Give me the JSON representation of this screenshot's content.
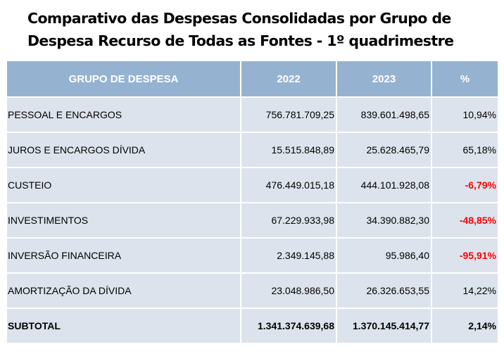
{
  "title": {
    "line1": "Comparativo das Despesas  Consolidadas por Grupo de",
    "line2": "Despesa Recurso de Todas as Fontes - 1º quadrimestre"
  },
  "table": {
    "headers": [
      "GRUPO DE DESPESA",
      "2022",
      "2023",
      "%"
    ],
    "rows": [
      {
        "group": "PESSOAL E ENCARGOS",
        "y2022": "756.781.709,25",
        "y2023": "839.601.498,65",
        "pct": "10,94%"
      },
      {
        "group": "JUROS E ENCARGOS DÍVIDA",
        "y2022": "15.515.848,89",
        "y2023": "25.628.465,79",
        "pct": "65,18%"
      },
      {
        "group": "CUSTEIO",
        "y2022": "476.449.015,18",
        "y2023": "444.101.928,08",
        "pct": "-6,79%"
      },
      {
        "group": "INVESTIMENTOS",
        "y2022": "67.229.933,98",
        "y2023": "34.390.882,30",
        "pct": "-48,85%"
      },
      {
        "group": "INVERSÃO FINANCEIRA",
        "y2022": "2.349.145,88",
        "y2023": "95.986,40",
        "pct": "-95,91%"
      },
      {
        "group": "AMORTIZAÇÃO DA DÍVIDA",
        "y2022": "23.048.986,50",
        "y2023": "26.326.653,55",
        "pct": "14,22%"
      }
    ],
    "subtotal": {
      "group": "SUBTOTAL",
      "y2022": "1.341.374.639,68",
      "y2023": "1.370.145.414,77",
      "pct": "2,14%"
    }
  },
  "colors": {
    "header_bg": "#95b3d1",
    "row_bg": "#dce3ec",
    "negative": "#ff0000"
  }
}
